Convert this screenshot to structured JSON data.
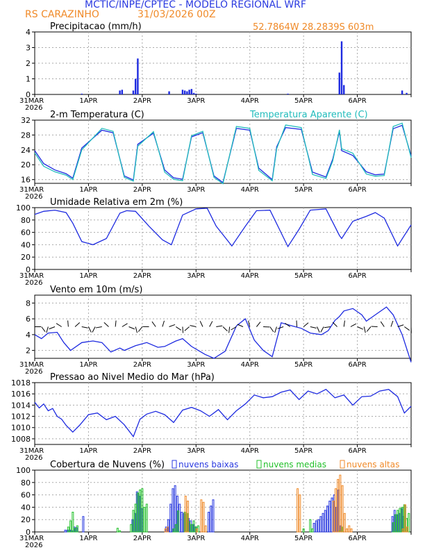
{
  "header": {
    "title": "MCTIC/INPE/CPTEC - MODELO REGIONAL WRF",
    "station": "RS CARAZINHO",
    "run": "31/03/2026 00Z",
    "location": "52.7864W 28.2839S 603m"
  },
  "colors": {
    "main": "#1d2ae0",
    "apparent": "#22bcbc",
    "low": "#2a3ae0",
    "mid": "#22c02a",
    "high": "#f08a28",
    "grid": "#aaaaaa"
  },
  "time_axis": {
    "start_label": "31MAR",
    "year_label": "2026",
    "tick_labels": [
      "1APR",
      "2APR",
      "3APR",
      "4APR",
      "5APR",
      "6APR"
    ],
    "hours_total": 168
  },
  "chart_data": [
    {
      "type": "bar",
      "title": "Precipitacao (mm/h)",
      "ylim": [
        0,
        4
      ],
      "yticks": [
        0,
        1,
        2,
        3,
        4
      ],
      "series": [
        {
          "name": "Precipitacao",
          "hours": [
            21,
            38,
            39,
            44,
            45,
            46,
            60,
            66,
            67,
            68,
            69,
            70,
            71,
            72,
            113,
            136,
            137,
            138,
            164,
            166
          ],
          "values": [
            0.05,
            0.25,
            0.3,
            0.25,
            1.0,
            2.3,
            0.2,
            0.3,
            0.25,
            0.2,
            0.3,
            0.35,
            0.1,
            0.05,
            0.05,
            1.4,
            3.4,
            0.6,
            0.25,
            0.1
          ]
        }
      ]
    },
    {
      "type": "line",
      "title": "2-m Temperatura (C)",
      "legend_label": "Temperatura Aparente (C)",
      "ylim": [
        15,
        32
      ],
      "yticks": [
        16,
        20,
        24,
        28,
        32
      ],
      "series": [
        {
          "name": "2-m Temperatura",
          "hours": [
            0,
            4,
            9,
            14,
            17,
            21,
            30,
            35,
            40,
            44,
            46,
            53,
            58,
            62,
            66,
            70,
            75,
            80,
            84,
            90,
            96,
            100,
            106,
            108,
            112,
            119,
            124,
            130,
            133,
            136,
            137,
            142,
            148,
            152,
            156,
            160,
            164,
            168
          ],
          "values": [
            23.8,
            20.3,
            18.6,
            17.6,
            16.4,
            24.5,
            29.3,
            28.6,
            17.0,
            15.9,
            25.5,
            28.5,
            18.6,
            16.5,
            16.1,
            27.5,
            28.6,
            17.0,
            15.2,
            29.8,
            29.3,
            19.1,
            16.0,
            24.8,
            30.0,
            29.5,
            18.0,
            16.7,
            21.5,
            28.9,
            23.8,
            22.5,
            18.1,
            17.3,
            17.5,
            29.7,
            30.6,
            22.4
          ]
        },
        {
          "name": "Temperatura Aparente",
          "hours": [
            0,
            4,
            9,
            14,
            17,
            21,
            30,
            35,
            40,
            44,
            46,
            53,
            58,
            62,
            66,
            70,
            75,
            80,
            84,
            90,
            96,
            100,
            106,
            108,
            112,
            119,
            124,
            130,
            133,
            136,
            137,
            142,
            148,
            152,
            156,
            160,
            164,
            168
          ],
          "values": [
            23.2,
            19.6,
            18.1,
            17.2,
            16.0,
            24.0,
            29.8,
            29.0,
            16.6,
            15.6,
            25.0,
            28.9,
            18.0,
            16.1,
            15.7,
            27.8,
            29.0,
            16.6,
            14.9,
            30.3,
            29.8,
            18.5,
            15.7,
            24.3,
            30.7,
            30.0,
            17.4,
            16.3,
            21.0,
            29.4,
            24.3,
            23.1,
            17.5,
            16.9,
            17.1,
            30.3,
            31.2,
            21.9
          ]
        }
      ]
    },
    {
      "type": "line",
      "title": "Umidade Relativa em 2m (%)",
      "ylim": [
        0,
        100
      ],
      "yticks": [
        0,
        20,
        40,
        60,
        80,
        100
      ],
      "series": [
        {
          "name": "Umidade Relativa",
          "hours": [
            0,
            4,
            9,
            14,
            17,
            21,
            26,
            32,
            38,
            41,
            45,
            51,
            57,
            61,
            66,
            72,
            77,
            81,
            88,
            94,
            99,
            105,
            113,
            118,
            123,
            130,
            136,
            137,
            142,
            148,
            152,
            156,
            162,
            168
          ],
          "values": [
            89,
            94,
            96,
            92,
            75,
            45,
            40,
            50,
            91,
            95,
            94,
            70,
            48,
            40,
            88,
            98,
            99,
            70,
            38,
            70,
            95,
            96,
            37,
            65,
            96,
            98,
            55,
            50,
            78,
            86,
            92,
            83,
            38,
            72
          ]
        }
      ]
    },
    {
      "type": "line",
      "title": "Vento em 10m (m/s)",
      "ylim": [
        1,
        9
      ],
      "yticks": [
        2,
        4,
        6,
        8
      ],
      "barb_hours": [
        0,
        3,
        6,
        9,
        12,
        15,
        18,
        21,
        24,
        27,
        30,
        33,
        36,
        39,
        42,
        45,
        48,
        51,
        54,
        57,
        60,
        63,
        66,
        69,
        72,
        75,
        78,
        81,
        84,
        87,
        90,
        93,
        96,
        99,
        102,
        105,
        108,
        111,
        114,
        117,
        120,
        123,
        126,
        129,
        132,
        135,
        138,
        141,
        144,
        147,
        150,
        153,
        156,
        159,
        162,
        165,
        168
      ],
      "series": [
        {
          "name": "Vento 10m",
          "hours": [
            0,
            3,
            6,
            10,
            13,
            16,
            21,
            26,
            30,
            34,
            38,
            40,
            45,
            50,
            55,
            58,
            63,
            66,
            70,
            76,
            80,
            85,
            90,
            94,
            98,
            102,
            106,
            110,
            115,
            119,
            123,
            128,
            131,
            134,
            136,
            138,
            142,
            146,
            148,
            152,
            157,
            160,
            164,
            168
          ],
          "values": [
            4.0,
            3.5,
            4.2,
            4.3,
            3.0,
            2.0,
            3.0,
            3.2,
            3.0,
            1.8,
            2.3,
            2.0,
            2.6,
            3.0,
            2.4,
            2.5,
            3.2,
            3.5,
            2.5,
            1.5,
            1.0,
            1.9,
            5.1,
            6.0,
            3.3,
            2.0,
            1.2,
            5.5,
            5.1,
            4.8,
            4.2,
            4.0,
            4.5,
            5.8,
            6.3,
            7.0,
            7.3,
            6.5,
            5.7,
            6.5,
            7.5,
            6.5,
            4.0,
            0.5
          ]
        }
      ]
    },
    {
      "type": "line",
      "title": "Pressao ao Nivel Medio do Mar (hPa)",
      "ylim": [
        1007,
        1018
      ],
      "yticks": [
        1008,
        1010,
        1012,
        1014,
        1016,
        1018
      ],
      "series": [
        {
          "name": "Pressao",
          "hours": [
            0,
            2,
            4,
            6,
            8,
            10,
            12,
            14,
            17,
            20,
            24,
            28,
            32,
            36,
            40,
            44,
            47,
            50,
            54,
            58,
            62,
            66,
            70,
            74,
            78,
            82,
            86,
            90,
            94,
            98,
            102,
            106,
            110,
            114,
            118,
            122,
            126,
            130,
            134,
            138,
            142,
            146,
            150,
            154,
            158,
            162,
            165,
            168
          ],
          "values": [
            1014.5,
            1013.5,
            1014.2,
            1013.0,
            1013.4,
            1012.0,
            1011.5,
            1010.4,
            1009.2,
            1010.4,
            1012.3,
            1012.6,
            1011.4,
            1012.0,
            1010.5,
            1008.4,
            1011.5,
            1012.4,
            1012.9,
            1012.3,
            1010.9,
            1013.1,
            1013.6,
            1013.0,
            1012.0,
            1013.2,
            1011.4,
            1013.0,
            1014.2,
            1015.8,
            1015.3,
            1015.5,
            1016.3,
            1016.7,
            1015.0,
            1016.5,
            1016.0,
            1016.8,
            1015.3,
            1015.8,
            1014.0,
            1015.5,
            1015.6,
            1016.5,
            1016.8,
            1015.5,
            1012.6,
            1013.8
          ]
        }
      ]
    },
    {
      "type": "bar",
      "title": "Cobertura de Nuvens (%)",
      "ylim": [
        0,
        100
      ],
      "yticks": [
        0,
        20,
        40,
        60,
        80,
        100
      ],
      "legend": [
        "nuvens baixas",
        "nuvens medias",
        "nuvens altas"
      ],
      "series": [
        {
          "name": "nuvens baixas",
          "hours": [
            14,
            15,
            16,
            17,
            18,
            19,
            22,
            44,
            45,
            46,
            47,
            48,
            59,
            60,
            61,
            62,
            63,
            64,
            65,
            66,
            67,
            68,
            69,
            70,
            71,
            72,
            78,
            79,
            80,
            125,
            126,
            127,
            128,
            129,
            130,
            131,
            132,
            133,
            134,
            135,
            136,
            137,
            160,
            161,
            162,
            163,
            164,
            165
          ],
          "values": [
            3,
            3,
            3,
            2,
            8,
            7,
            25,
            20,
            30,
            65,
            58,
            38,
            8,
            20,
            45,
            70,
            75,
            58,
            45,
            32,
            30,
            28,
            22,
            18,
            12,
            8,
            32,
            42,
            52,
            14,
            18,
            20,
            25,
            30,
            35,
            42,
            50,
            55,
            60,
            40,
            68,
            10,
            25,
            35,
            28,
            30,
            38,
            25
          ]
        },
        {
          "name": "nuvens medias",
          "hours": [
            15,
            16,
            17,
            18,
            19,
            37,
            38,
            43,
            44,
            45,
            46,
            47,
            48,
            49,
            50,
            62,
            63,
            64,
            67,
            68,
            69,
            70,
            71,
            72,
            73,
            120,
            123,
            124,
            136,
            137,
            160,
            161,
            162,
            163,
            164,
            165,
            166,
            167
          ],
          "values": [
            8,
            18,
            32,
            6,
            10,
            6,
            2,
            12,
            35,
            45,
            63,
            68,
            70,
            40,
            45,
            5,
            12,
            34,
            32,
            30,
            16,
            12,
            18,
            8,
            10,
            5,
            20,
            5,
            2,
            8,
            15,
            28,
            35,
            38,
            40,
            44,
            22,
            30
          ]
        },
        {
          "name": "nuvens altas",
          "hours": [
            58,
            59,
            67,
            68,
            72,
            74,
            75,
            76,
            117,
            118,
            133,
            134,
            135,
            136,
            137,
            138,
            139,
            140,
            141,
            164,
            165,
            166
          ],
          "values": [
            5,
            8,
            58,
            50,
            5,
            52,
            48,
            10,
            70,
            60,
            50,
            70,
            85,
            92,
            75,
            30,
            5,
            10,
            5,
            5,
            44,
            8
          ]
        }
      ]
    }
  ]
}
